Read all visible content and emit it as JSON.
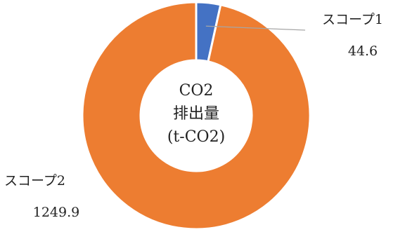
{
  "chart_data": {
    "type": "pie",
    "style": "donut",
    "center_label": [
      "CO2",
      "排出量",
      "(t-CO2)"
    ],
    "slices": [
      {
        "name": "スコープ1",
        "value": 44.6,
        "color": "#4472C4"
      },
      {
        "name": "スコープ2",
        "value": 1249.9,
        "color": "#ED7D31"
      }
    ],
    "leader_line_color": "#A6A6A6",
    "data_labels": "name-and-value",
    "legend": "none"
  }
}
